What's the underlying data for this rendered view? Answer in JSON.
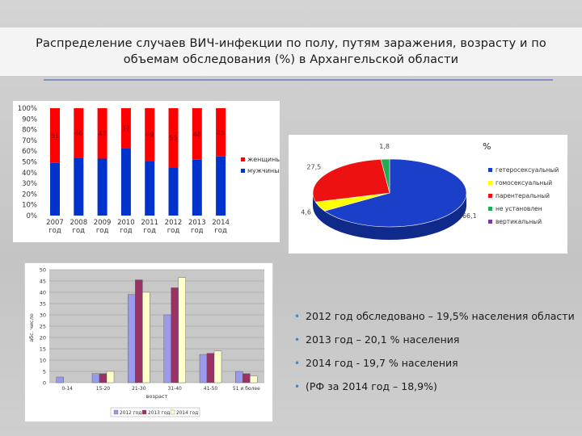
{
  "title": "Распределение случаев ВИЧ-инфекции по полу, путям заражения, возрасту и по объемам обследования (%) в Архангельской области",
  "bullets": [
    "2012 год обследовано – 19,5% населения области",
    "2013 год – 20,1 % населения",
    "2014 год - 19,7 % населения",
    "(РФ за 2014 год – 18,9%)"
  ],
  "colors": {
    "female": "#ff0000",
    "male": "#0033cc",
    "hetero": "#1b3fc8",
    "homo": "#ffff00",
    "parenteral": "#ee1111",
    "unknown": "#22aa55",
    "vertical": "#7a3aa0",
    "s2012": "#9999ee",
    "s2013": "#993366",
    "s2014": "#ffffcc"
  },
  "chart_data": [
    {
      "type": "bar",
      "stacked": true,
      "categories": [
        "2007 год",
        "2008 год",
        "2009 год",
        "2010 год",
        "2011 год",
        "2012 год",
        "2013 год",
        "2014 год"
      ],
      "series": [
        {
          "name": "мужчины",
          "values": [
            49,
            54,
            53,
            63,
            51,
            45,
            52,
            55
          ]
        },
        {
          "name": "женщины",
          "values": [
            51,
            46,
            47,
            37,
            49,
            55,
            48,
            45
          ]
        }
      ],
      "data_labels_male": [
        "",
        "",
        "",
        "",
        "",
        "",
        "",
        ""
      ],
      "data_labels_female": [
        "51",
        "46",
        "47",
        "37",
        "49",
        "55",
        "48",
        "45"
      ],
      "yticks": [
        "0%",
        "10%",
        "20%",
        "30%",
        "40%",
        "50%",
        "60%",
        "70%",
        "80%",
        "90%",
        "100%"
      ],
      "ylim": [
        0,
        100
      ],
      "legend": "right"
    },
    {
      "type": "pie",
      "title": "%",
      "labels": [
        "гетеросексуальный",
        "гомосексуальный",
        "парентеральный",
        "не установлен",
        "вертикальный"
      ],
      "values": [
        66.1,
        4.6,
        27.5,
        1.8,
        0
      ],
      "data_labels": [
        "66,1",
        "4,6",
        "27,5",
        "1,8",
        ""
      ],
      "legend": "right"
    },
    {
      "type": "bar",
      "categories": [
        "0-14",
        "15-20",
        "21-30",
        "31-40",
        "41-50",
        "51 и более"
      ],
      "series": [
        {
          "name": "2012 год",
          "values": [
            2.5,
            4,
            39,
            30,
            12.5,
            5
          ]
        },
        {
          "name": "2013 год",
          "values": [
            0,
            4,
            45.5,
            42,
            13,
            4
          ]
        },
        {
          "name": "2014 год",
          "values": [
            0,
            5,
            40,
            46.5,
            14,
            3
          ]
        }
      ],
      "yticks": [
        "0",
        "5",
        "10",
        "15",
        "20",
        "25",
        "30",
        "35",
        "40",
        "45",
        "50"
      ],
      "ylim": [
        0,
        50
      ],
      "xlabel": "возраст",
      "ylabel": "абс. число",
      "legend": "bottom"
    }
  ]
}
